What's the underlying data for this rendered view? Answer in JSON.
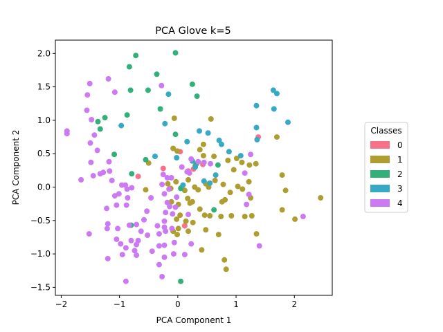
{
  "chart_data": {
    "type": "scatter",
    "title": "PCA Glove k=5",
    "xlabel": "PCA Component 1",
    "ylabel": "PCA Component 2",
    "xlim": [
      -2.1,
      2.65
    ],
    "ylim": [
      -1.62,
      2.2
    ],
    "xticks": [
      -2,
      -1,
      0,
      1,
      2
    ],
    "yticks": [
      -1.5,
      -1.0,
      -0.5,
      0.0,
      0.5,
      1.0,
      1.5,
      2.0
    ],
    "grid": false,
    "legend": {
      "title": "Classes",
      "position": "right"
    },
    "series": [
      {
        "name": "0",
        "color": "#f77189",
        "points": [
          [
            0.04,
            0.53
          ],
          [
            0.43,
            0.34
          ],
          [
            -0.68,
            0.16
          ],
          [
            -0.25,
            0.28
          ],
          [
            0.18,
            0.24
          ],
          [
            0.12,
            -0.58
          ],
          [
            0.27,
            0.27
          ],
          [
            1.38,
            0.75
          ]
        ]
      },
      {
        "name": "1",
        "color": "#ae9d31",
        "points": [
          [
            -0.06,
            1.03
          ],
          [
            0.57,
            1.02
          ],
          [
            -0.5,
            0.36
          ],
          [
            -0.08,
            0.58
          ],
          [
            -0.01,
            0.54
          ],
          [
            0.44,
            0.64
          ],
          [
            0.38,
            0.56
          ],
          [
            0.3,
            0.32
          ],
          [
            0.62,
            0.46
          ],
          [
            0.86,
            0.4
          ],
          [
            1.01,
            0.43
          ],
          [
            1.1,
            0.37
          ],
          [
            1.23,
            0.33
          ],
          [
            1.34,
            0.35
          ],
          [
            1.79,
            0.18
          ],
          [
            1.85,
            -0.05
          ],
          [
            1.79,
            -0.34
          ],
          [
            2.01,
            -0.48
          ],
          [
            2.45,
            -0.16
          ],
          [
            1.7,
            0.75
          ],
          [
            0.96,
            0.26
          ],
          [
            1.03,
            0.01
          ],
          [
            1.11,
            -0.03
          ],
          [
            1.22,
            0.08
          ],
          [
            1.25,
            -0.16
          ],
          [
            1.27,
            -0.43
          ],
          [
            1.15,
            -0.44
          ],
          [
            1.35,
            -0.7
          ],
          [
            0.76,
            -0.22
          ],
          [
            0.74,
            -0.44
          ],
          [
            0.92,
            -0.43
          ],
          [
            0.81,
            -0.19
          ],
          [
            0.9,
            -0.08
          ],
          [
            0.78,
            0.04
          ],
          [
            0.64,
            0.1
          ],
          [
            0.53,
            0.0
          ],
          [
            0.48,
            0.05
          ],
          [
            0.35,
            -0.04
          ],
          [
            0.18,
            0.11
          ],
          [
            0.06,
            -0.01
          ],
          [
            -0.03,
            0.08
          ],
          [
            -0.12,
            -0.02
          ],
          [
            -0.17,
            0.05
          ],
          [
            -0.11,
            -0.22
          ],
          [
            0.01,
            -0.26
          ],
          [
            0.17,
            -0.17
          ],
          [
            0.25,
            -0.22
          ],
          [
            0.38,
            -0.33
          ],
          [
            0.46,
            -0.42
          ],
          [
            0.55,
            -0.43
          ],
          [
            0.48,
            -0.64
          ],
          [
            0.26,
            -0.53
          ],
          [
            0.18,
            -0.66
          ],
          [
            0.14,
            -0.51
          ],
          [
            0.04,
            -0.42
          ],
          [
            -0.02,
            -0.48
          ],
          [
            0.01,
            -0.62
          ],
          [
            -0.01,
            -0.71
          ],
          [
            -0.08,
            -0.66
          ],
          [
            -0.55,
            -0.04
          ],
          [
            0.41,
            -0.94
          ],
          [
            0.7,
            -0.71
          ],
          [
            0.8,
            -1.09
          ],
          [
            0.83,
            -1.23
          ],
          [
            0.21,
            -0.24
          ],
          [
            0.12,
            -0.05
          ],
          [
            0.44,
            0.47
          ],
          [
            0.29,
            0.0
          ]
        ]
      },
      {
        "name": "2",
        "color": "#33b07a",
        "points": [
          [
            -0.83,
            1.8
          ],
          [
            -0.72,
            1.97
          ],
          [
            -0.04,
            2.01
          ],
          [
            0.25,
            1.54
          ],
          [
            0.33,
            1.36
          ],
          [
            -0.36,
            1.69
          ],
          [
            -0.81,
            1.45
          ],
          [
            -0.51,
            1.45
          ],
          [
            -0.87,
            1.08
          ],
          [
            -1.25,
            1.04
          ],
          [
            -1.37,
            0.98
          ],
          [
            -1.33,
            0.87
          ],
          [
            -0.3,
            1.17
          ],
          [
            -1.09,
            0.49
          ],
          [
            -0.55,
            0.41
          ],
          [
            -0.79,
            0.2
          ],
          [
            -0.04,
            0.79
          ],
          [
            0.69,
            0.33
          ],
          [
            0.62,
            -0.34
          ],
          [
            0.05,
            -1.41
          ],
          [
            -0.8,
            -0.57
          ],
          [
            0.05,
            -0.02
          ],
          [
            0.32,
            0.35
          ]
        ]
      },
      {
        "name": "3",
        "color": "#38a9c5",
        "points": [
          [
            -0.16,
            1.39
          ],
          [
            -0.97,
            0.92
          ],
          [
            -0.22,
            0.95
          ],
          [
            0.16,
            0.68
          ],
          [
            0.37,
            0.84
          ],
          [
            0.52,
            0.81
          ],
          [
            0.71,
            0.7
          ],
          [
            0.75,
            0.64
          ],
          [
            0.88,
            0.53
          ],
          [
            1.08,
            0.47
          ],
          [
            1.35,
            0.89
          ],
          [
            1.36,
            0.71
          ],
          [
            1.35,
            1.22
          ],
          [
            1.64,
            1.45
          ],
          [
            1.7,
            1.4
          ],
          [
            1.65,
            1.17
          ],
          [
            1.89,
            0.97
          ],
          [
            -0.02,
            0.44
          ],
          [
            -0.39,
            0.46
          ],
          [
            0.09,
            0.03
          ],
          [
            0.45,
            0.09
          ],
          [
            0.55,
            0.06
          ],
          [
            0.65,
            0.18
          ],
          [
            0.25,
            0.39
          ],
          [
            0.3,
            0.3
          ]
        ]
      },
      {
        "name": "4",
        "color": "#cc7af4",
        "points": [
          [
            -1.51,
            1.55
          ],
          [
            -1.55,
            1.38
          ],
          [
            -1.19,
            1.62
          ],
          [
            -1.08,
            1.42
          ],
          [
            -1.56,
            1.15
          ],
          [
            -1.48,
            1.01
          ],
          [
            -1.43,
            0.78
          ],
          [
            -1.9,
            0.84
          ],
          [
            -1.9,
            0.8
          ],
          [
            -1.5,
            0.66
          ],
          [
            -1.38,
            0.55
          ],
          [
            -1.49,
            0.37
          ],
          [
            -1.33,
            0.2
          ],
          [
            -1.28,
            0.22
          ],
          [
            -1.18,
            0.38
          ],
          [
            -1.17,
            0.24
          ],
          [
            -1.45,
            0.17
          ],
          [
            -1.66,
            0.11
          ],
          [
            -1.13,
            0.1
          ],
          [
            -0.96,
            0.03
          ],
          [
            -0.9,
            0.03
          ],
          [
            -0.87,
            -0.03
          ],
          [
            -0.79,
            -0.01
          ],
          [
            -1.01,
            -0.1
          ],
          [
            -1.08,
            -0.13
          ],
          [
            -0.86,
            -0.16
          ],
          [
            -0.88,
            -0.27
          ],
          [
            -1.05,
            -0.27
          ],
          [
            -1.22,
            -0.32
          ],
          [
            -1.2,
            -0.55
          ],
          [
            -1.21,
            -0.62
          ],
          [
            -1.03,
            -0.62
          ],
          [
            -0.83,
            -0.57
          ],
          [
            -0.71,
            -0.56
          ],
          [
            -0.53,
            -0.36
          ],
          [
            -0.58,
            -0.49
          ],
          [
            -0.63,
            -0.66
          ],
          [
            -0.52,
            -0.72
          ],
          [
            -0.68,
            -0.8
          ],
          [
            -0.74,
            -0.95
          ],
          [
            -0.71,
            -1.02
          ],
          [
            -0.89,
            -0.91
          ],
          [
            -0.8,
            -0.8
          ],
          [
            -0.98,
            -0.85
          ],
          [
            -0.95,
            -1.01
          ],
          [
            -1.05,
            -0.78
          ],
          [
            -1.2,
            -1.07
          ],
          [
            -1.52,
            -0.7
          ],
          [
            -0.89,
            -1.41
          ],
          [
            -0.27,
            -1.34
          ],
          [
            -0.32,
            -1.16
          ],
          [
            -0.23,
            -1.05
          ],
          [
            -0.07,
            -1.0
          ],
          [
            -0.06,
            -0.83
          ],
          [
            -0.23,
            -0.87
          ],
          [
            -0.32,
            -0.88
          ],
          [
            -0.35,
            -0.58
          ],
          [
            -0.23,
            -0.6
          ],
          [
            -0.1,
            -0.62
          ],
          [
            -0.21,
            -0.66
          ],
          [
            -0.23,
            -0.51
          ],
          [
            -0.09,
            -0.4
          ],
          [
            -0.21,
            -0.38
          ],
          [
            -0.14,
            -0.29
          ],
          [
            -0.04,
            -0.3
          ],
          [
            -0.18,
            -0.23
          ],
          [
            -0.02,
            -0.15
          ],
          [
            -0.23,
            -0.1
          ],
          [
            -0.15,
            -0.03
          ],
          [
            -0.27,
            0.04
          ],
          [
            -0.25,
            0.19
          ],
          [
            -0.11,
            0.14
          ],
          [
            -0.18,
            0.14
          ],
          [
            0.07,
            0.3
          ],
          [
            0.23,
            0.42
          ],
          [
            0.35,
            0.38
          ],
          [
            0.2,
            0.21
          ],
          [
            0.18,
            -0.41
          ],
          [
            0.23,
            -0.85
          ],
          [
            0.12,
            -1.01
          ],
          [
            -0.44,
            -0.96
          ],
          [
            -0.32,
            -0.7
          ],
          [
            -0.46,
            -0.16
          ],
          [
            0.45,
            0.37
          ],
          [
            0.56,
            0.35
          ],
          [
            1.25,
            0.49
          ],
          [
            1.15,
            0.21
          ],
          [
            1.22,
            -0.11
          ],
          [
            1.18,
            -0.26
          ],
          [
            1.4,
            -0.88
          ],
          [
            2.15,
            -0.44
          ],
          [
            -0.28,
            1.52
          ],
          [
            0.16,
            0.23
          ],
          [
            -0.71,
            -0.86
          ]
        ]
      }
    ]
  }
}
